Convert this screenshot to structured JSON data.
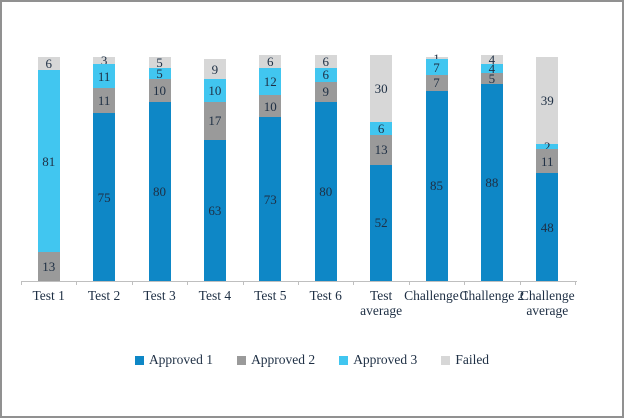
{
  "chart_data": {
    "type": "bar",
    "stacked": true,
    "title": "",
    "xlabel": "",
    "ylabel": "",
    "ylim": [
      0,
      101
    ],
    "grid": false,
    "legend_position": "bottom",
    "value_labels_shown": true,
    "categories": [
      "Test 1",
      "Test 2",
      "Test 3",
      "Test 4",
      "Test 5",
      "Test 6",
      "Test average",
      "Challenge 1",
      "Challenge 2",
      "Challenge average"
    ],
    "series": [
      {
        "name": "Approved 1",
        "color": "#0E87C6",
        "values": [
          0,
          75,
          80,
          63,
          73,
          80,
          52,
          85,
          88,
          48
        ]
      },
      {
        "name": "Approved 2",
        "color": "#9A9A9A",
        "values": [
          13,
          11,
          10,
          17,
          10,
          9,
          13,
          7,
          5,
          11
        ]
      },
      {
        "name": "Approved 3",
        "color": "#41C6F0",
        "values": [
          81,
          11,
          5,
          10,
          12,
          6,
          6,
          7,
          4,
          2
        ]
      },
      {
        "name": "Failed",
        "color": "#D7D7D7",
        "values": [
          6,
          3,
          5,
          9,
          6,
          6,
          30,
          1,
          4,
          39
        ]
      }
    ],
    "colors": {
      "axis": "#BFBFBF",
      "text": "#1E2F44",
      "frame_border": "#919191",
      "background": "#FFFFFF"
    }
  }
}
